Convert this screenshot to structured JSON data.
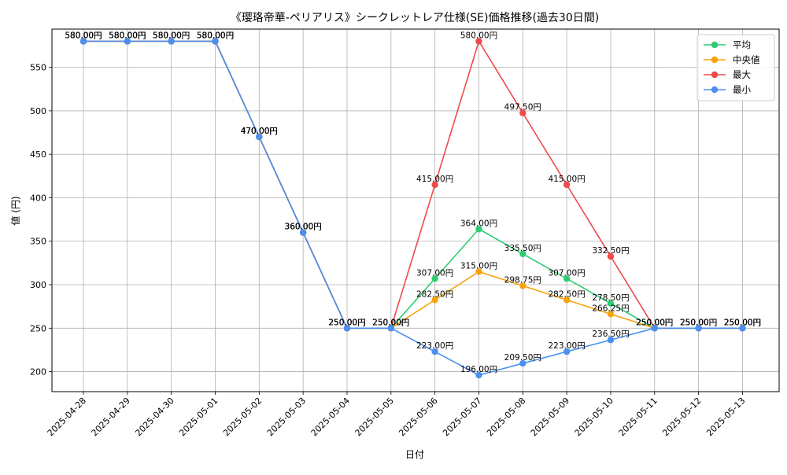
{
  "chart_data": {
    "type": "line",
    "title": "《璎珞帝華-ペリアリス》シークレットレア仕様(SE)価格推移(過去30日間)",
    "xlabel": "日付",
    "ylabel": "値 (円)",
    "ylim": [
      177,
      594
    ],
    "yticks": [
      200,
      250,
      300,
      350,
      400,
      450,
      500,
      550
    ],
    "grid": true,
    "legend_position": "top-right",
    "label_suffix": "円",
    "x": [
      "2025-04-28",
      "2025-04-29",
      "2025-04-30",
      "2025-05-01",
      "2025-05-02",
      "2025-05-03",
      "2025-05-04",
      "2025-05-05",
      "2025-05-06",
      "2025-05-07",
      "2025-05-08",
      "2025-05-09",
      "2025-05-10",
      "2025-05-11",
      "2025-05-12",
      "2025-05-13"
    ],
    "series": [
      {
        "name": "平均",
        "color": "#2ecc71",
        "values": [
          580,
          580,
          580,
          580,
          470,
          360,
          250,
          250,
          307,
          364,
          335.5,
          307,
          278.5,
          250,
          250,
          250
        ]
      },
      {
        "name": "中央値",
        "color": "#f5a30a",
        "values": [
          580,
          580,
          580,
          580,
          470,
          360,
          250,
          250,
          282.5,
          315,
          298.75,
          282.5,
          266.25,
          250,
          250,
          250
        ]
      },
      {
        "name": "最大",
        "color": "#f04a4a",
        "values": [
          580,
          580,
          580,
          580,
          470,
          360,
          250,
          250,
          415,
          580,
          497.5,
          415,
          332.5,
          250,
          250,
          250
        ]
      },
      {
        "name": "最小",
        "color": "#4a90f0",
        "values": [
          580,
          580,
          580,
          580,
          470,
          360,
          250,
          250,
          223,
          196,
          209.5,
          223,
          236.5,
          250,
          250,
          250
        ]
      }
    ]
  }
}
